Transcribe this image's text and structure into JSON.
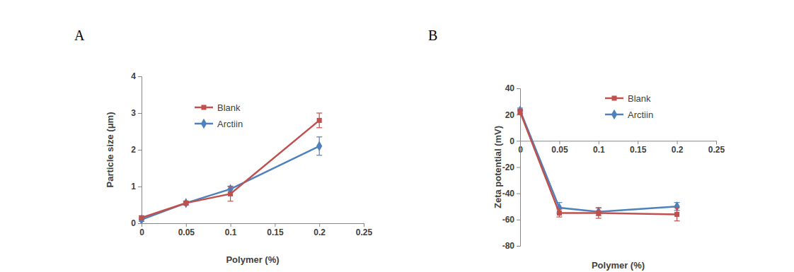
{
  "chart_data": [
    {
      "type": "line",
      "title": "A",
      "x_label": "Polymer (%)",
      "y_label": "Particle size (μm)",
      "x": [
        0,
        0.05,
        0.1,
        0.2
      ],
      "xlim": [
        0,
        0.25
      ],
      "xticks": [
        0,
        0.05,
        0.1,
        0.15,
        0.2,
        0.25
      ],
      "ylim": [
        0,
        4
      ],
      "yticks": [
        0,
        1,
        2,
        3,
        4
      ],
      "grid": false,
      "legend": "top-left",
      "series": [
        {
          "name": "Blank",
          "color": "#c0504d",
          "marker": "square",
          "values": [
            0.15,
            0.55,
            0.8,
            2.8
          ],
          "errors": [
            0.05,
            0.05,
            0.2,
            0.2
          ]
        },
        {
          "name": "Arctiin",
          "color": "#4f81bd",
          "marker": "diamond",
          "values": [
            0.1,
            0.55,
            0.93,
            2.1
          ],
          "errors": [
            0.05,
            0.05,
            0.08,
            0.25
          ]
        }
      ]
    },
    {
      "type": "line",
      "title": "B",
      "x_label": "Polymer (%)",
      "y_label": "Zeta potential (mV)",
      "x": [
        0,
        0.05,
        0.1,
        0.2
      ],
      "xlim": [
        0,
        0.25
      ],
      "xticks": [
        0,
        0.05,
        0.1,
        0.15,
        0.2,
        0.25
      ],
      "ylim": [
        -80,
        40
      ],
      "yticks": [
        -80,
        -60,
        -40,
        -20,
        0,
        20,
        40
      ],
      "grid": false,
      "legend": "top-right",
      "series": [
        {
          "name": "Blank",
          "color": "#c0504d",
          "marker": "square",
          "values": [
            22,
            -55,
            -55,
            -56
          ],
          "errors": [
            2,
            3,
            4,
            5
          ]
        },
        {
          "name": "Arctiin",
          "color": "#4f81bd",
          "marker": "diamond",
          "values": [
            23,
            -51,
            -54,
            -50
          ],
          "errors": [
            2,
            4,
            3,
            3
          ]
        }
      ]
    }
  ]
}
